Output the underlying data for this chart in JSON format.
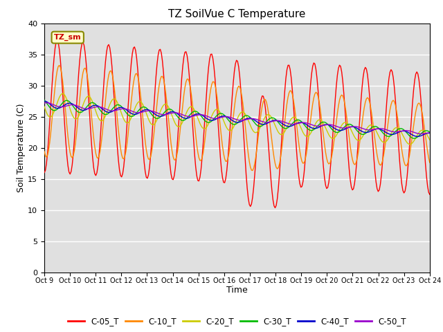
{
  "title": "TZ SoilVue C Temperature",
  "xlabel": "Time",
  "ylabel": "Soil Temperature (C)",
  "ylim": [
    0,
    40
  ],
  "yticks": [
    0,
    5,
    10,
    15,
    20,
    25,
    30,
    35,
    40
  ],
  "x_tick_labels": [
    "Oct 9",
    "Oct 10",
    "Oct 11",
    "Oct 12",
    "Oct 13",
    "Oct 14",
    "Oct 15",
    "Oct 16",
    "Oct 17",
    "Oct 18",
    "Oct 19",
    "Oct 20",
    "Oct 21",
    "Oct 22",
    "Oct 23",
    "Oct 24"
  ],
  "annotation_text": "TZ_sm",
  "annotation_color": "#cc0000",
  "annotation_bg": "#ffffcc",
  "series_colors": {
    "C-05_T": "#ff0000",
    "C-10_T": "#ff8800",
    "C-20_T": "#cccc00",
    "C-30_T": "#00bb00",
    "C-40_T": "#0000cc",
    "C-50_T": "#9900cc"
  },
  "bg_color": "#e0e0e0",
  "grid_color": "#ffffff"
}
